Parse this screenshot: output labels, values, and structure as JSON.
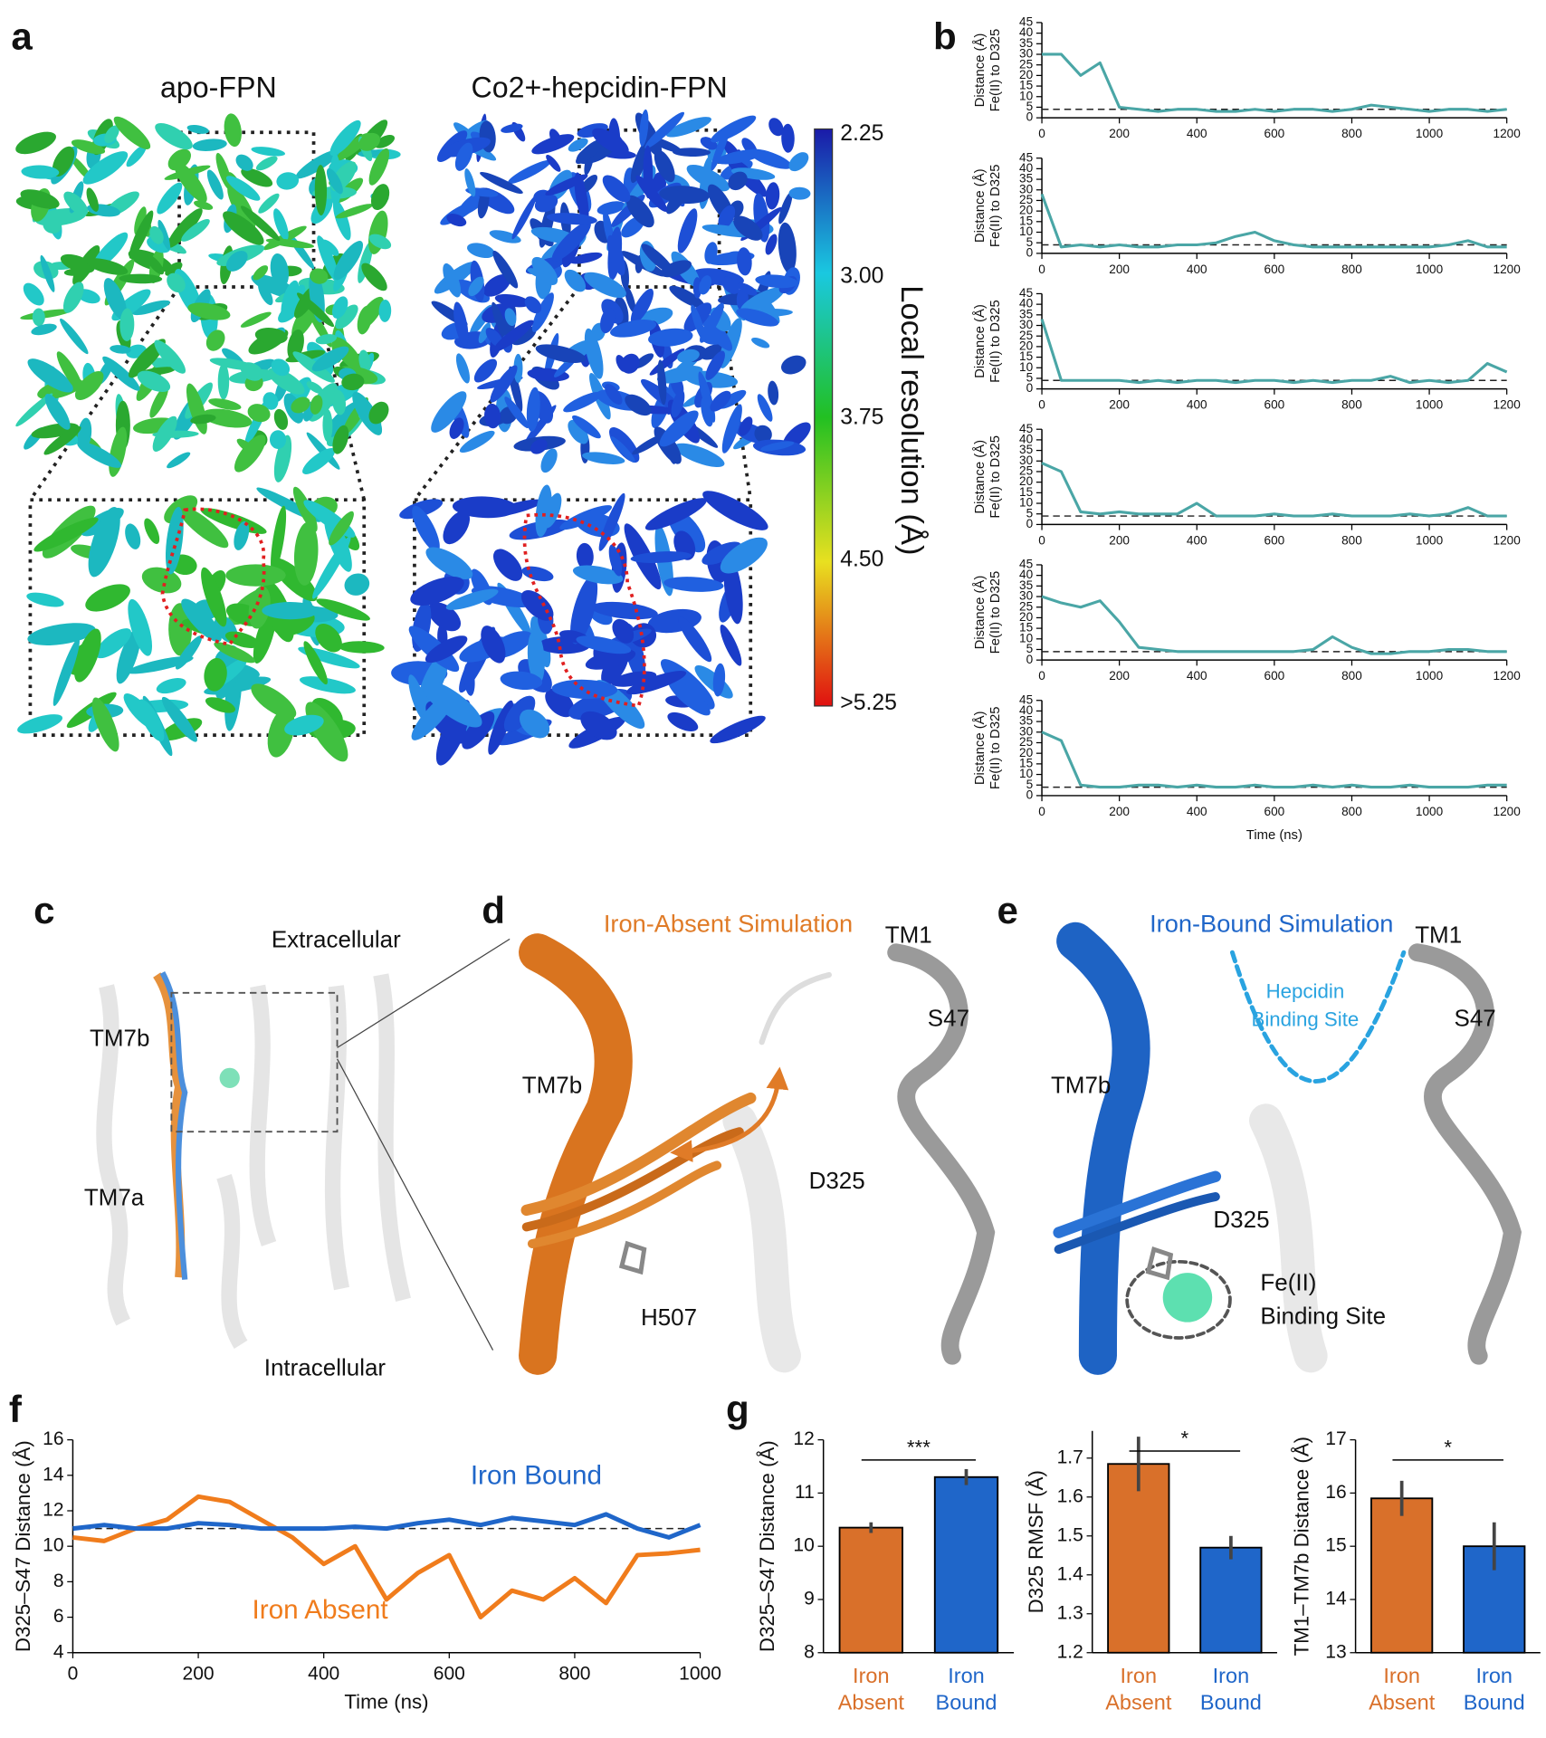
{
  "figure": {
    "panel_labels": [
      "a",
      "b",
      "c",
      "d",
      "e",
      "f",
      "g"
    ],
    "a": {
      "titles": [
        "apo-FPN",
        "Co2+-hepcidin-FPN"
      ],
      "colorbar_ticks": [
        "2.25",
        "3.00",
        "3.75",
        "4.50",
        ">5.25"
      ],
      "colorbar_label": "Local resolution (Å)"
    },
    "c": {
      "labels": [
        "Extracellular",
        "TM7b",
        "TM7a",
        "Intracellular"
      ]
    },
    "d": {
      "title": "Iron-Absent Simulation",
      "labels": [
        "TM1",
        "TM7b",
        "S47",
        "D325",
        "H507"
      ]
    },
    "e": {
      "title": "Iron-Bound Simulation",
      "hepcidin_site": [
        "Hepcidin",
        "Binding Site"
      ],
      "labels": [
        "TM1",
        "S47",
        "TM7b",
        "D325"
      ],
      "iron_site": [
        "Fe(II)",
        "Binding Site"
      ]
    }
  },
  "chart_data": [
    {
      "type": "line",
      "y_label": [
        "Distance (Å)",
        "Fe(II) to D325"
      ],
      "color": "#4aa6a6",
      "reference_line": 4,
      "x": [
        0,
        50,
        100,
        150,
        200,
        250,
        300,
        350,
        400,
        450,
        500,
        550,
        600,
        650,
        700,
        750,
        800,
        850,
        900,
        950,
        1000,
        1050,
        1100,
        1150,
        1200
      ],
      "values": [
        30,
        30,
        20,
        26,
        5,
        4,
        3,
        4,
        4,
        3,
        3,
        4,
        3,
        4,
        4,
        3,
        4,
        6,
        5,
        4,
        3,
        4,
        4,
        3,
        4
      ],
      "xlim": [
        0,
        1200
      ],
      "xticks": [
        0,
        200,
        400,
        600,
        800,
        1000,
        1200
      ],
      "ylim": [
        0,
        45
      ],
      "yticks": [
        0,
        5,
        10,
        15,
        20,
        25,
        30,
        35,
        40,
        45
      ]
    },
    {
      "type": "line",
      "y_label": [
        "Distance (Å)",
        "Fe(II) to D325"
      ],
      "color": "#4aa6a6",
      "reference_line": 4,
      "x": [
        0,
        50,
        100,
        150,
        200,
        250,
        300,
        350,
        400,
        450,
        500,
        550,
        600,
        650,
        700,
        750,
        800,
        850,
        900,
        950,
        1000,
        1050,
        1100,
        1150,
        1200
      ],
      "values": [
        28,
        3,
        4,
        3,
        4,
        3,
        3,
        4,
        4,
        5,
        8,
        10,
        6,
        4,
        3,
        3,
        3,
        3,
        3,
        3,
        3,
        4,
        6,
        3,
        3
      ],
      "xlim": [
        0,
        1200
      ],
      "xticks": [
        0,
        200,
        400,
        600,
        800,
        1000,
        1200
      ],
      "ylim": [
        0,
        45
      ],
      "yticks": [
        0,
        5,
        10,
        15,
        20,
        25,
        30,
        35,
        40,
        45
      ]
    },
    {
      "type": "line",
      "y_label": [
        "Distance (Å)",
        "Fe(II) to D325"
      ],
      "color": "#4aa6a6",
      "reference_line": 4,
      "x": [
        0,
        50,
        100,
        150,
        200,
        250,
        300,
        350,
        400,
        450,
        500,
        550,
        600,
        650,
        700,
        750,
        800,
        850,
        900,
        950,
        1000,
        1050,
        1100,
        1150,
        1200
      ],
      "values": [
        33,
        4,
        4,
        4,
        4,
        3,
        4,
        3,
        4,
        4,
        3,
        4,
        4,
        3,
        4,
        3,
        4,
        4,
        6,
        3,
        4,
        3,
        4,
        12,
        8
      ],
      "xlim": [
        0,
        1200
      ],
      "xticks": [
        0,
        200,
        400,
        600,
        800,
        1000,
        1200
      ],
      "ylim": [
        0,
        45
      ],
      "yticks": [
        0,
        5,
        10,
        15,
        20,
        25,
        30,
        35,
        40,
        45
      ]
    },
    {
      "type": "line",
      "y_label": [
        "Distance (Å)",
        "Fe(II) to D325"
      ],
      "color": "#4aa6a6",
      "reference_line": 4,
      "x": [
        0,
        50,
        100,
        150,
        200,
        250,
        300,
        350,
        400,
        450,
        500,
        550,
        600,
        650,
        700,
        750,
        800,
        850,
        900,
        950,
        1000,
        1050,
        1100,
        1150,
        1200
      ],
      "values": [
        29,
        25,
        6,
        5,
        6,
        5,
        5,
        5,
        10,
        4,
        4,
        4,
        5,
        4,
        4,
        5,
        4,
        4,
        4,
        5,
        4,
        5,
        8,
        4,
        4
      ],
      "xlim": [
        0,
        1200
      ],
      "xticks": [
        0,
        200,
        400,
        600,
        800,
        1000,
        1200
      ],
      "ylim": [
        0,
        45
      ],
      "yticks": [
        0,
        5,
        10,
        15,
        20,
        25,
        30,
        35,
        40,
        45
      ]
    },
    {
      "type": "line",
      "y_label": [
        "Distance (Å)",
        "Fe(II) to D325"
      ],
      "color": "#4aa6a6",
      "reference_line": 4,
      "x": [
        0,
        50,
        100,
        150,
        200,
        250,
        300,
        350,
        400,
        450,
        500,
        550,
        600,
        650,
        700,
        750,
        800,
        850,
        900,
        950,
        1000,
        1050,
        1100,
        1150,
        1200
      ],
      "values": [
        30,
        27,
        25,
        28,
        18,
        6,
        5,
        4,
        4,
        4,
        4,
        4,
        4,
        4,
        5,
        11,
        6,
        3,
        3,
        4,
        4,
        5,
        5,
        4,
        4
      ],
      "xlim": [
        0,
        1200
      ],
      "xticks": [
        0,
        200,
        400,
        600,
        800,
        1000,
        1200
      ],
      "ylim": [
        0,
        45
      ],
      "yticks": [
        0,
        5,
        10,
        15,
        20,
        25,
        30,
        35,
        40,
        45
      ]
    },
    {
      "type": "line",
      "y_label": [
        "Distance (Å)",
        "Fe(II) to D325"
      ],
      "x_label": "Time (ns)",
      "color": "#4aa6a6",
      "reference_line": 4,
      "x": [
        0,
        50,
        100,
        150,
        200,
        250,
        300,
        350,
        400,
        450,
        500,
        550,
        600,
        650,
        700,
        750,
        800,
        850,
        900,
        950,
        1000,
        1050,
        1100,
        1150,
        1200
      ],
      "values": [
        30,
        26,
        5,
        4,
        4,
        5,
        5,
        4,
        5,
        4,
        4,
        5,
        4,
        4,
        5,
        4,
        5,
        4,
        4,
        5,
        4,
        4,
        4,
        5,
        5
      ],
      "xlim": [
        0,
        1200
      ],
      "xticks": [
        0,
        200,
        400,
        600,
        800,
        1000,
        1200
      ],
      "ylim": [
        0,
        45
      ],
      "yticks": [
        0,
        5,
        10,
        15,
        20,
        25,
        30,
        35,
        40,
        45
      ]
    },
    {
      "type": "line",
      "x_label": "Time (ns)",
      "y_label": [
        "D325–S47 Distance (Å)"
      ],
      "reference_line": 11,
      "x": [
        0,
        50,
        100,
        150,
        200,
        250,
        300,
        350,
        400,
        450,
        500,
        550,
        600,
        650,
        700,
        750,
        800,
        850,
        900,
        950,
        1000
      ],
      "series": [
        {
          "name": "Iron Absent",
          "color": "#f07c1c",
          "values": [
            10.5,
            10.3,
            11,
            11.5,
            12.8,
            12.5,
            11.5,
            10.5,
            9,
            10,
            7,
            8.5,
            9.5,
            6,
            7.5,
            7,
            8.2,
            6.8,
            9.5,
            9.6,
            9.8
          ]
        },
        {
          "name": "Iron Bound",
          "color": "#1f66c9",
          "values": [
            11,
            11.2,
            11,
            11,
            11.3,
            11.2,
            11,
            11,
            11,
            11.1,
            11,
            11.3,
            11.5,
            11.2,
            11.6,
            11.4,
            11.2,
            11.8,
            11,
            10.5,
            11.2
          ]
        }
      ],
      "xlim": [
        0,
        1000
      ],
      "xticks": [
        0,
        200,
        400,
        600,
        800,
        1000
      ],
      "ylim": [
        4,
        16
      ],
      "yticks": [
        4,
        6,
        8,
        10,
        12,
        14,
        16
      ]
    },
    {
      "type": "bar",
      "y_label": [
        "D325–S47 Distance (Å)"
      ],
      "categories": [
        "Iron Absent",
        "Iron Bound"
      ],
      "colors": [
        "#d9702a",
        "#1f66c9"
      ],
      "values": [
        10.35,
        11.3
      ],
      "errors": [
        0.1,
        0.15
      ],
      "significance": "***",
      "ylim": [
        8,
        12
      ],
      "yticks": [
        8,
        9,
        10,
        11,
        12
      ]
    },
    {
      "type": "bar",
      "y_label": [
        "D325 RMSF (Å)"
      ],
      "categories": [
        "Iron Absent",
        "Iron Bound"
      ],
      "colors": [
        "#d9702a",
        "#1f66c9"
      ],
      "values": [
        1.685,
        1.47
      ],
      "errors": [
        0.07,
        0.03
      ],
      "significance": "*",
      "ylim": [
        1.2,
        1.77
      ],
      "yticks": [
        1.2,
        1.3,
        1.4,
        1.5,
        1.6,
        1.7
      ]
    },
    {
      "type": "bar",
      "y_label": [
        "TM1–TM7b Distance (Å)"
      ],
      "categories": [
        "Iron Absent",
        "Iron Bound"
      ],
      "colors": [
        "#d9702a",
        "#1f66c9"
      ],
      "values": [
        15.9,
        15.0
      ],
      "errors": [
        0.33,
        0.45
      ],
      "significance": "*",
      "ylim": [
        13,
        17
      ],
      "yticks": [
        13,
        14,
        15,
        16,
        17
      ]
    }
  ]
}
